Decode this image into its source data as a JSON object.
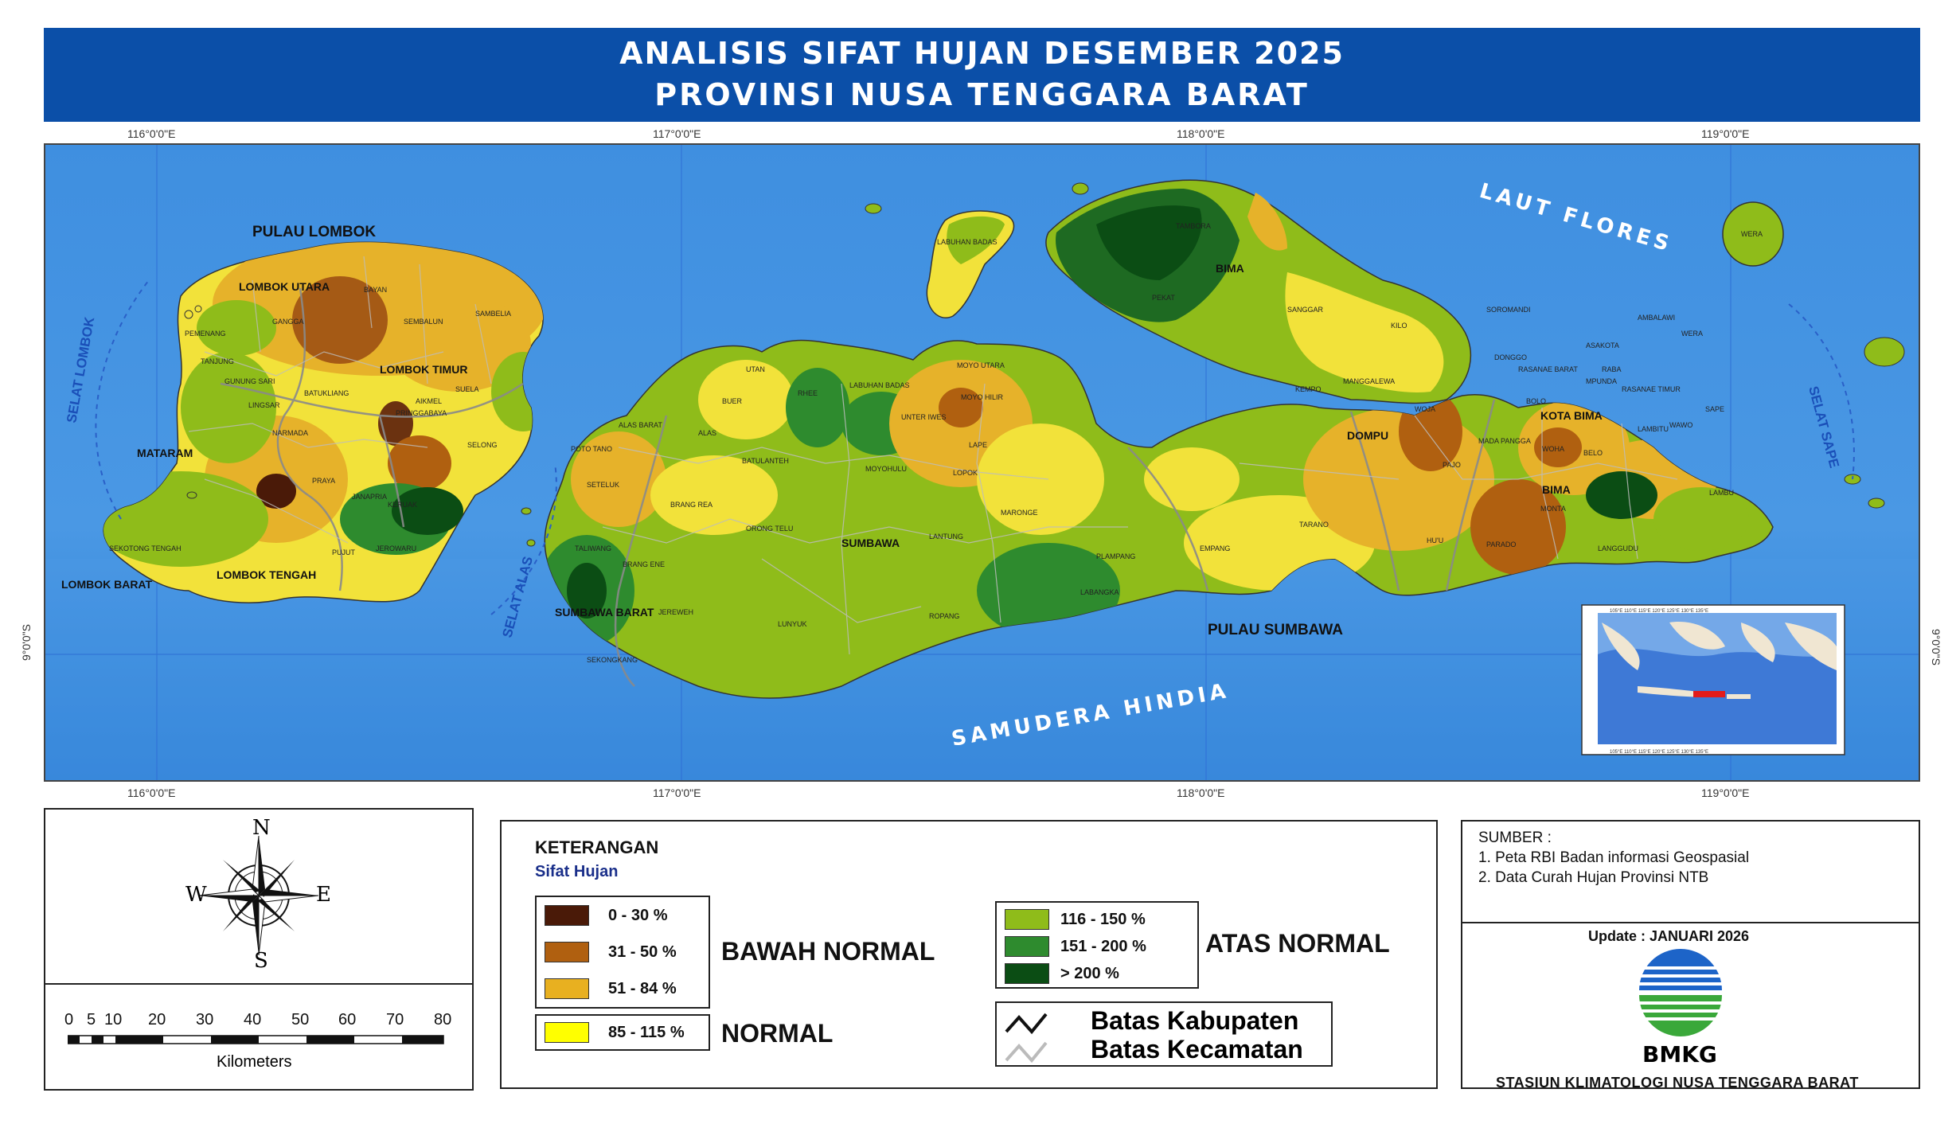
{
  "title": {
    "line1": "ANALISIS SIFAT HUJAN DESEMBER 2025",
    "line2": "PROVINSI NUSA TENGGARA BARAT"
  },
  "coordinates": {
    "lon": [
      "116°0'0\"E",
      "117°0'0\"E",
      "118°0'0\"E",
      "119°0'0\"E"
    ],
    "lat": [
      "9°0'0\"S"
    ]
  },
  "map_labels": {
    "islands": [
      "PULAU LOMBOK",
      "PULAU SUMBAWA"
    ],
    "seas": [
      "LAUT FLORES",
      "SAMUDERA HINDIA",
      "SELAT LOMBOK",
      "SELAT ALAS",
      "SELAT SAPE"
    ],
    "regencies": [
      "LOMBOK UTARA",
      "LOMBOK TIMUR",
      "MATARAM",
      "LOMBOK TENGAH",
      "LOMBOK BARAT",
      "SUMBAWA BARAT",
      "SUMBAWA",
      "DOMPU",
      "BIMA",
      "KOTA BIMA"
    ],
    "districts": [
      "BAYAN",
      "GANGGA",
      "SEMBALUN",
      "SAMBELIA",
      "PEMENANG",
      "TANJUNG",
      "SUELA",
      "AIKMEL",
      "PRINGGABAYA",
      "SELONG",
      "GUNUNG SARI",
      "BATUKLIANG",
      "NARMADA",
      "LINGSAR",
      "PRAYA",
      "JANAPRIA",
      "KERUAK",
      "JEROWARU",
      "PUJUT",
      "SEKOTONG TENGAH",
      "TALIWANG",
      "SETELUK",
      "BRANG REA",
      "BRANG ENE",
      "JEREWEH",
      "SEKONGKANG",
      "POTO TANO",
      "ALAS",
      "ALAS BARAT",
      "BUER",
      "UTAN",
      "RHEE",
      "LABUHAN BADAS",
      "UNTER IWES",
      "MOYO HILIR",
      "MOYO UTARA",
      "LABUHAN BADAS",
      "BATULANTEH",
      "MOYOHULU",
      "ORONG TELU",
      "LOPOK",
      "LAPE",
      "MARONGE",
      "LANTUNG",
      "LUNYUK",
      "ROPANG",
      "LABANGKA",
      "PLAMPANG",
      "EMPANG",
      "TARANO",
      "SANGGAR",
      "TAMBORA",
      "PEKAT",
      "KEMPO",
      "MANGGALEWA",
      "WOJA",
      "PAJO",
      "HU'U",
      "KILO",
      "SOROMANDI",
      "DONGGO",
      "BOLO",
      "MADA PANGGA",
      "WOHA",
      "MONTA",
      "PARADO",
      "BELO",
      "LANGGUDU",
      "AMBALAWI",
      "WERA",
      "WAWO",
      "SAPE",
      "LAMBU",
      "LAMBITU",
      "RASANAE BARAT",
      "RASANAE TIMUR",
      "RABA",
      "ASAKOTA",
      "MPUNDA"
    ]
  },
  "legend": {
    "title": "KETERANGAN",
    "subtitle": "Sifat Hujan",
    "classes": [
      {
        "label": "0 - 30 %",
        "color": "#4a1a08"
      },
      {
        "label": "31 - 50 %",
        "color": "#b06010"
      },
      {
        "label": "51 - 84 %",
        "color": "#e8b020"
      },
      {
        "label": "85 - 115 %",
        "color": "#ffff00"
      },
      {
        "label": "116 - 150 %",
        "color": "#8fbc1a"
      },
      {
        "label": "151 - 200 %",
        "color": "#2e8b2e"
      },
      {
        "label": "> 200 %",
        "color": "#0b4d14"
      }
    ],
    "groups": {
      "below": "BAWAH NORMAL",
      "normal": "NORMAL",
      "above": "ATAS NORMAL"
    },
    "boundaries": {
      "kabupaten": "Batas Kabupaten",
      "kecamatan": "Batas Kecamatan"
    }
  },
  "compass": {
    "n": "N",
    "s": "S",
    "e": "E",
    "w": "W"
  },
  "scale": {
    "ticks": [
      "0",
      "5",
      "10",
      "20",
      "30",
      "40",
      "50",
      "60",
      "70",
      "80"
    ],
    "unit": "Kilometers"
  },
  "source": {
    "heading": "SUMBER :",
    "items": [
      "1. Peta RBI Badan informasi Geospasial",
      "2. Data Curah Hujan Provinsi NTB"
    ]
  },
  "update": "Update : JANUARI 2026",
  "logo_text": "BMKG",
  "station": "STASIUN KLIMATOLOGI NUSA TENGGARA BARAT",
  "colors": {
    "sea": "#3f8fe0",
    "title_bar": "#0b4fa8",
    "grid": "#2f6fd6"
  }
}
